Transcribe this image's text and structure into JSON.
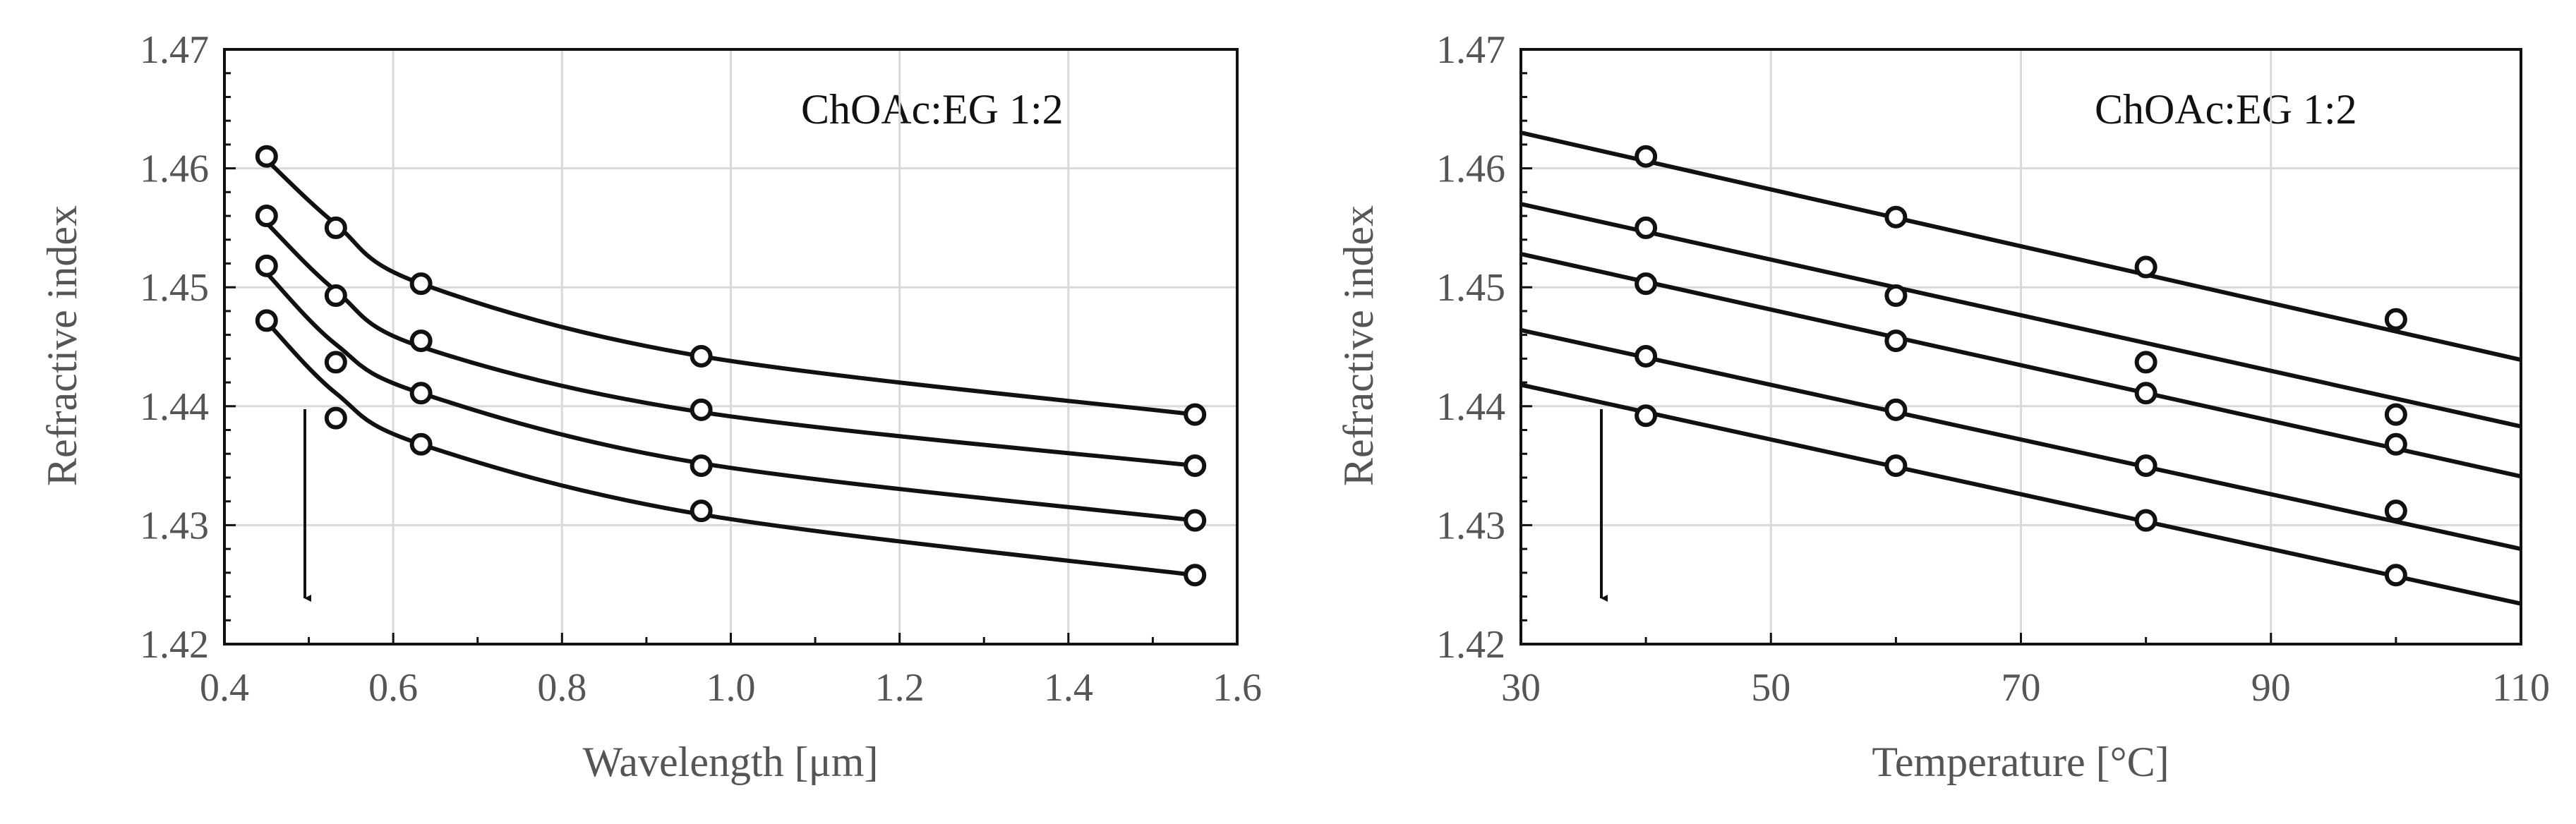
{
  "chart_data": [
    {
      "type": "line",
      "title": "",
      "annotation": "ChOAc:EG  1:2",
      "xlabel": "Wavelength [μm]",
      "ylabel": "Refractive index",
      "xlim": [
        0.4,
        1.6
      ],
      "ylim": [
        1.42,
        1.47
      ],
      "x_ticks": [
        "0.4",
        "0.6",
        "0.8",
        "1.0",
        "1.2",
        "1.4",
        "1.6"
      ],
      "y_ticks": [
        "1.42",
        "1.43",
        "1.44",
        "1.45",
        "1.46",
        "1.47"
      ],
      "grid": true,
      "legend": "none",
      "arrow": "downward arrow, increasing temperature",
      "x": [
        0.45,
        0.532,
        0.633,
        0.965,
        1.55
      ],
      "series": [
        {
          "points": [
            1.461,
            1.455,
            1.4503,
            1.4442,
            1.4393
          ],
          "fit": [
            1.4607,
            1.4553,
            1.4503,
            1.4442,
            1.4393
          ]
        },
        {
          "points": [
            1.456,
            1.4493,
            1.4455,
            1.4397,
            1.435
          ],
          "fit": [
            1.4554,
            1.4497,
            1.445,
            1.4395,
            1.435
          ]
        },
        {
          "points": [
            1.4518,
            1.4437,
            1.4411,
            1.435,
            1.4304
          ],
          "fit": [
            1.4512,
            1.4452,
            1.4411,
            1.4352,
            1.4304
          ]
        },
        {
          "points": [
            1.4472,
            1.439,
            1.4368,
            1.4312,
            1.4258
          ],
          "fit": [
            1.4471,
            1.4411,
            1.4368,
            1.4309,
            1.4258
          ]
        }
      ]
    },
    {
      "type": "line",
      "title": "",
      "annotation": "ChOAc:EG  1:2",
      "xlabel": "Temperature [°C]",
      "ylabel": "Refractive index",
      "xlim": [
        30,
        110
      ],
      "ylim": [
        1.42,
        1.47
      ],
      "x_ticks": [
        "30",
        "50",
        "70",
        "90",
        "110"
      ],
      "y_ticks": [
        "1.42",
        "1.43",
        "1.44",
        "1.45",
        "1.46",
        "1.47"
      ],
      "grid": true,
      "legend": "none",
      "arrow": "downward arrow, increasing wavelength",
      "x": [
        40,
        60,
        80,
        100
      ],
      "series": [
        {
          "points": [
            1.461,
            1.4559,
            1.4517,
            1.4473
          ],
          "line": [
            1.463,
            1.4439
          ]
        },
        {
          "points": [
            1.455,
            1.4493,
            1.4437,
            1.4393
          ],
          "line": [
            1.457,
            1.4383
          ]
        },
        {
          "points": [
            1.4503,
            1.4455,
            1.4411,
            1.4368
          ],
          "line": [
            1.4528,
            1.4341
          ]
        },
        {
          "points": [
            1.4442,
            1.4397,
            1.435,
            1.4312
          ],
          "line": [
            1.4464,
            1.428
          ]
        },
        {
          "points": [
            1.4392,
            1.435,
            1.4304,
            1.4258
          ],
          "line": [
            1.4418,
            1.4234
          ]
        }
      ]
    }
  ]
}
